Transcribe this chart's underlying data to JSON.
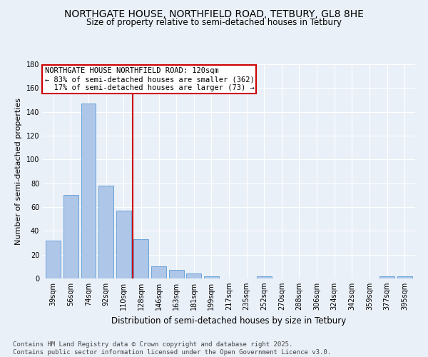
{
  "title": "NORTHGATE HOUSE, NORTHFIELD ROAD, TETBURY, GL8 8HE",
  "subtitle": "Size of property relative to semi-detached houses in Tetbury",
  "xlabel": "Distribution of semi-detached houses by size in Tetbury",
  "ylabel": "Number of semi-detached properties",
  "categories": [
    "39sqm",
    "56sqm",
    "74sqm",
    "92sqm",
    "110sqm",
    "128sqm",
    "146sqm",
    "163sqm",
    "181sqm",
    "199sqm",
    "217sqm",
    "235sqm",
    "252sqm",
    "270sqm",
    "288sqm",
    "306sqm",
    "324sqm",
    "342sqm",
    "359sqm",
    "377sqm",
    "395sqm"
  ],
  "values": [
    32,
    70,
    147,
    78,
    57,
    33,
    10,
    7,
    4,
    2,
    0,
    0,
    2,
    0,
    0,
    0,
    0,
    0,
    0,
    2,
    2
  ],
  "bar_color": "#aec6e8",
  "bar_edge_color": "#5a9bd5",
  "vline_x": 4.5,
  "vline_color": "#cc0000",
  "annotation_text": "NORTHGATE HOUSE NORTHFIELD ROAD: 120sqm\n← 83% of semi-detached houses are smaller (362)\n  17% of semi-detached houses are larger (73) →",
  "annotation_box_color": "#ffffff",
  "annotation_box_edge": "#cc0000",
  "ylim": [
    0,
    180
  ],
  "yticks": [
    0,
    20,
    40,
    60,
    80,
    100,
    120,
    140,
    160,
    180
  ],
  "bg_color": "#eaf0f8",
  "plot_bg_color": "#eaf0f8",
  "footer": "Contains HM Land Registry data © Crown copyright and database right 2025.\nContains public sector information licensed under the Open Government Licence v3.0.",
  "title_fontsize": 10,
  "subtitle_fontsize": 8.5,
  "xlabel_fontsize": 8.5,
  "ylabel_fontsize": 8,
  "tick_fontsize": 7,
  "annotation_fontsize": 7.5,
  "footer_fontsize": 6.5
}
